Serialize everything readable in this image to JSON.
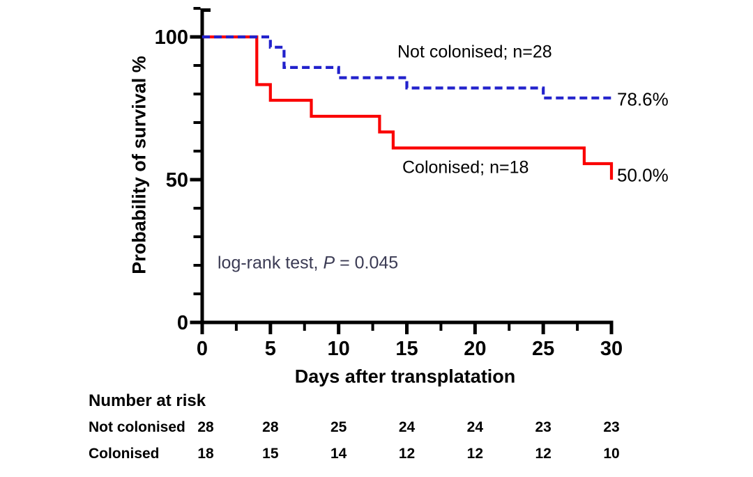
{
  "chart_data": {
    "type": "line",
    "subtype": "kaplan_meier_step_survival",
    "title": "",
    "xlabel": "Days after transplatation",
    "ylabel": "Probability of survival %",
    "xlim": [
      0,
      30
    ],
    "ylim": [
      0,
      110
    ],
    "grid": false,
    "axis_color": "#000000",
    "x_ticks": [
      0,
      5,
      10,
      15,
      20,
      25,
      30
    ],
    "x_tick_labels": [
      "0",
      "5",
      "10",
      "15",
      "20",
      "25",
      "30"
    ],
    "x_minor_ticks": [
      2.5,
      7.5,
      12.5,
      17.5,
      22.5,
      27.5
    ],
    "y_ticks": [
      0,
      50,
      100
    ],
    "y_tick_labels": [
      "0",
      "50",
      "100"
    ],
    "y_minor_ticks": [
      10,
      20,
      30,
      40,
      60,
      70,
      80,
      90,
      110
    ],
    "annotation_parts": {
      "prefix": "log-rank test, ",
      "p_symbol": "P",
      "rest": " = 0.045"
    },
    "annotation_color": "#3b3b54",
    "legend_position": "inline-labels",
    "series": [
      {
        "name": "Not colonised",
        "n": 28,
        "label": "Not colonised; n=28",
        "end_label": "78.6%",
        "color": "#2222cc",
        "style": "dashed",
        "steps": [
          [
            0,
            100
          ],
          [
            5,
            100
          ],
          [
            5,
            96.4
          ],
          [
            6,
            96.4
          ],
          [
            6,
            89.3
          ],
          [
            10,
            89.3
          ],
          [
            10,
            85.7
          ],
          [
            15,
            85.7
          ],
          [
            15,
            82.1
          ],
          [
            25,
            82.1
          ],
          [
            25,
            78.6
          ],
          [
            30,
            78.6
          ]
        ]
      },
      {
        "name": "Colonised",
        "n": 18,
        "label": "Colonised; n=18",
        "end_label": "50.0%",
        "color": "#fa0000",
        "style": "solid",
        "steps": [
          [
            0,
            100
          ],
          [
            4,
            100
          ],
          [
            4,
            83.3
          ],
          [
            5,
            83.3
          ],
          [
            5,
            77.8
          ],
          [
            8,
            77.8
          ],
          [
            8,
            72.2
          ],
          [
            13,
            72.2
          ],
          [
            13,
            66.7
          ],
          [
            14,
            66.7
          ],
          [
            14,
            61.1
          ],
          [
            28,
            61.1
          ],
          [
            28,
            55.6
          ],
          [
            30,
            55.6
          ],
          [
            30,
            50.0
          ]
        ]
      }
    ]
  },
  "risk_table": {
    "title": "Number at risk",
    "times": [
      0,
      5,
      10,
      15,
      20,
      25,
      30
    ],
    "rows": [
      {
        "label": "Not colonised",
        "values": [
          "28",
          "28",
          "25",
          "24",
          "24",
          "23",
          "23"
        ]
      },
      {
        "label": "Colonised",
        "values": [
          "18",
          "15",
          "14",
          "12",
          "12",
          "12",
          "10"
        ]
      }
    ]
  }
}
